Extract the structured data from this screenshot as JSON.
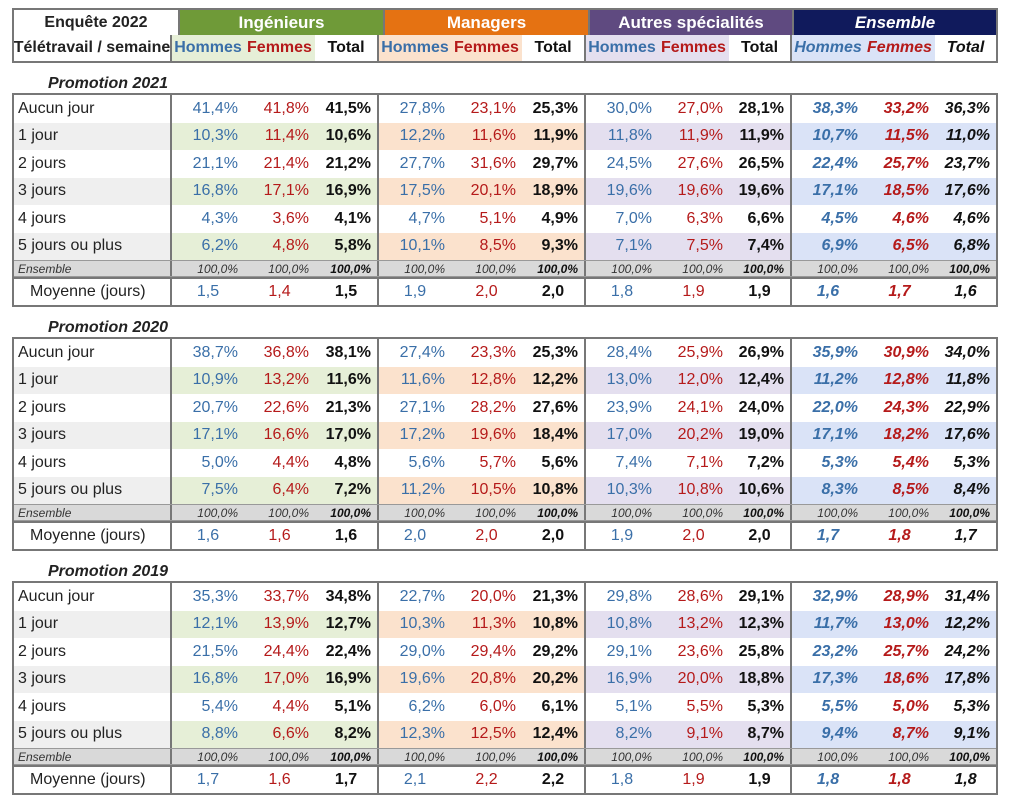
{
  "header": {
    "corner_line1": "Enquête 2022",
    "corner_line2": "Télétravail / semaine",
    "groups": [
      {
        "title": "Ingénieurs",
        "color": "#6f9a38",
        "tint": "#e6efd7",
        "subs": [
          "Hommes",
          "Femmes",
          "Total"
        ]
      },
      {
        "title": "Managers",
        "color": "#e57212",
        "tint": "#fbe2cd",
        "subs": [
          "Hommes",
          "Femmes",
          "Total"
        ]
      },
      {
        "title": "Autres spécialités",
        "color": "#5f4a80",
        "tint": "#e4dfef",
        "subs": [
          "Hommes",
          "Femmes",
          "Total"
        ]
      },
      {
        "title": "Ensemble",
        "color": "#101a5c",
        "tint": "#dae3f7",
        "subs": [
          "Hommes",
          "Femmes",
          "Total"
        ]
      }
    ]
  },
  "sections": [
    {
      "title": "Promotion 2021",
      "rows": [
        {
          "label": "Aucun jour",
          "values": [
            "41,4%",
            "41,8%",
            "41,5%",
            "27,8%",
            "23,1%",
            "25,3%",
            "30,0%",
            "27,0%",
            "28,1%",
            "38,3%",
            "33,2%",
            "36,3%"
          ]
        },
        {
          "label": "1 jour",
          "values": [
            "10,3%",
            "11,4%",
            "10,6%",
            "12,2%",
            "11,6%",
            "11,9%",
            "11,8%",
            "11,9%",
            "11,9%",
            "10,7%",
            "11,5%",
            "11,0%"
          ]
        },
        {
          "label": "2 jours",
          "values": [
            "21,1%",
            "21,4%",
            "21,2%",
            "27,7%",
            "31,6%",
            "29,7%",
            "24,5%",
            "27,6%",
            "26,5%",
            "22,4%",
            "25,7%",
            "23,7%"
          ]
        },
        {
          "label": "3 jours",
          "values": [
            "16,8%",
            "17,1%",
            "16,9%",
            "17,5%",
            "20,1%",
            "18,9%",
            "19,6%",
            "19,6%",
            "19,6%",
            "17,1%",
            "18,5%",
            "17,6%"
          ]
        },
        {
          "label": "4 jours",
          "values": [
            "4,3%",
            "3,6%",
            "4,1%",
            "4,7%",
            "5,1%",
            "4,9%",
            "7,0%",
            "6,3%",
            "6,6%",
            "4,5%",
            "4,6%",
            "4,6%"
          ]
        },
        {
          "label": "5 jours ou plus",
          "values": [
            "6,2%",
            "4,8%",
            "5,8%",
            "10,1%",
            "8,5%",
            "9,3%",
            "7,1%",
            "7,5%",
            "7,4%",
            "6,9%",
            "6,5%",
            "6,8%"
          ]
        }
      ],
      "ensemble": {
        "label": "Ensemble",
        "values": [
          "100,0%",
          "100,0%",
          "100,0%",
          "100,0%",
          "100,0%",
          "100,0%",
          "100,0%",
          "100,0%",
          "100,0%",
          "100,0%",
          "100,0%",
          "100,0%"
        ]
      },
      "moyenne": {
        "label": "Moyenne (jours)",
        "values": [
          "1,5",
          "1,4",
          "1,5",
          "1,9",
          "2,0",
          "2,0",
          "1,8",
          "1,9",
          "1,9",
          "1,6",
          "1,7",
          "1,6"
        ]
      }
    },
    {
      "title": "Promotion 2020",
      "rows": [
        {
          "label": "Aucun jour",
          "values": [
            "38,7%",
            "36,8%",
            "38,1%",
            "27,4%",
            "23,3%",
            "25,3%",
            "28,4%",
            "25,9%",
            "26,9%",
            "35,9%",
            "30,9%",
            "34,0%"
          ]
        },
        {
          "label": "1 jour",
          "values": [
            "10,9%",
            "13,2%",
            "11,6%",
            "11,6%",
            "12,8%",
            "12,2%",
            "13,0%",
            "12,0%",
            "12,4%",
            "11,2%",
            "12,8%",
            "11,8%"
          ]
        },
        {
          "label": "2 jours",
          "values": [
            "20,7%",
            "22,6%",
            "21,3%",
            "27,1%",
            "28,2%",
            "27,6%",
            "23,9%",
            "24,1%",
            "24,0%",
            "22,0%",
            "24,3%",
            "22,9%"
          ]
        },
        {
          "label": "3 jours",
          "values": [
            "17,1%",
            "16,6%",
            "17,0%",
            "17,2%",
            "19,6%",
            "18,4%",
            "17,0%",
            "20,2%",
            "19,0%",
            "17,1%",
            "18,2%",
            "17,6%"
          ]
        },
        {
          "label": "4 jours",
          "values": [
            "5,0%",
            "4,4%",
            "4,8%",
            "5,6%",
            "5,7%",
            "5,6%",
            "7,4%",
            "7,1%",
            "7,2%",
            "5,3%",
            "5,4%",
            "5,3%"
          ]
        },
        {
          "label": "5 jours ou plus",
          "values": [
            "7,5%",
            "6,4%",
            "7,2%",
            "11,2%",
            "10,5%",
            "10,8%",
            "10,3%",
            "10,8%",
            "10,6%",
            "8,3%",
            "8,5%",
            "8,4%"
          ]
        }
      ],
      "ensemble": {
        "label": "Ensemble",
        "values": [
          "100,0%",
          "100,0%",
          "100,0%",
          "100,0%",
          "100,0%",
          "100,0%",
          "100,0%",
          "100,0%",
          "100,0%",
          "100,0%",
          "100,0%",
          "100,0%"
        ]
      },
      "moyenne": {
        "label": "Moyenne (jours)",
        "values": [
          "1,6",
          "1,6",
          "1,6",
          "2,0",
          "2,0",
          "2,0",
          "1,9",
          "2,0",
          "2,0",
          "1,7",
          "1,8",
          "1,7"
        ]
      }
    },
    {
      "title": "Promotion 2019",
      "rows": [
        {
          "label": "Aucun jour",
          "values": [
            "35,3%",
            "33,7%",
            "34,8%",
            "22,7%",
            "20,0%",
            "21,3%",
            "29,8%",
            "28,6%",
            "29,1%",
            "32,9%",
            "28,9%",
            "31,4%"
          ]
        },
        {
          "label": "1 jour",
          "values": [
            "12,1%",
            "13,9%",
            "12,7%",
            "10,3%",
            "11,3%",
            "10,8%",
            "10,8%",
            "13,2%",
            "12,3%",
            "11,7%",
            "13,0%",
            "12,2%"
          ]
        },
        {
          "label": "2 jours",
          "values": [
            "21,5%",
            "24,4%",
            "22,4%",
            "29,0%",
            "29,4%",
            "29,2%",
            "29,1%",
            "23,6%",
            "25,8%",
            "23,2%",
            "25,7%",
            "24,2%"
          ]
        },
        {
          "label": "3 jours",
          "values": [
            "16,8%",
            "17,0%",
            "16,9%",
            "19,6%",
            "20,8%",
            "20,2%",
            "16,9%",
            "20,0%",
            "18,8%",
            "17,3%",
            "18,6%",
            "17,8%"
          ]
        },
        {
          "label": "4 jours",
          "values": [
            "5,4%",
            "4,4%",
            "5,1%",
            "6,2%",
            "6,0%",
            "6,1%",
            "5,1%",
            "5,5%",
            "5,3%",
            "5,5%",
            "5,0%",
            "5,3%"
          ]
        },
        {
          "label": "5 jours ou plus",
          "values": [
            "8,8%",
            "6,6%",
            "8,2%",
            "12,3%",
            "12,5%",
            "12,4%",
            "8,2%",
            "9,1%",
            "8,7%",
            "9,4%",
            "8,7%",
            "9,1%"
          ]
        }
      ],
      "ensemble": {
        "label": "Ensemble",
        "values": [
          "100,0%",
          "100,0%",
          "100,0%",
          "100,0%",
          "100,0%",
          "100,0%",
          "100,0%",
          "100,0%",
          "100,0%",
          "100,0%",
          "100,0%",
          "100,0%"
        ]
      },
      "moyenne": {
        "label": "Moyenne (jours)",
        "values": [
          "1,7",
          "1,6",
          "1,7",
          "2,1",
          "2,2",
          "2,2",
          "1,8",
          "1,9",
          "1,9",
          "1,8",
          "1,8",
          "1,8"
        ]
      }
    }
  ]
}
